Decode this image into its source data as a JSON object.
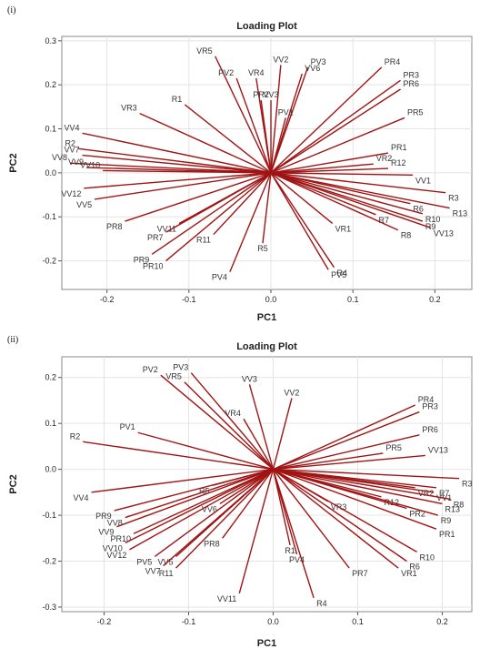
{
  "chart_data": [
    {
      "type": "scatter",
      "panel_label": "(i)",
      "title": "Loading Plot",
      "xlabel": "PC1",
      "ylabel": "PC2",
      "xlim": [
        -0.255,
        0.245
      ],
      "ylim": [
        -0.265,
        0.31
      ],
      "xticks": [
        "-0.2",
        "-0.1",
        "0.0",
        "0.1",
        "0.2"
      ],
      "yticks": [
        "0.3",
        "0.2",
        "0.1",
        "0.0",
        "-0.1",
        "-0.2"
      ],
      "xtick_values": [
        -0.2,
        -0.1,
        0.0,
        0.1,
        0.2
      ],
      "ytick_values": [
        0.3,
        0.2,
        0.1,
        0.0,
        -0.1,
        -0.2
      ],
      "grid": true,
      "line_color": "#a01414",
      "points": [
        {
          "label": "VR5",
          "x": -0.068,
          "y": 0.265
        },
        {
          "label": "PV2",
          "x": -0.042,
          "y": 0.215
        },
        {
          "label": "VR4",
          "x": -0.018,
          "y": 0.215
        },
        {
          "label": "VV2",
          "x": 0.012,
          "y": 0.245
        },
        {
          "label": "PV3",
          "x": 0.045,
          "y": 0.24
        },
        {
          "label": "VV6",
          "x": 0.038,
          "y": 0.225
        },
        {
          "label": "PR4",
          "x": 0.135,
          "y": 0.24
        },
        {
          "label": "PR3",
          "x": 0.158,
          "y": 0.21
        },
        {
          "label": "PR6",
          "x": 0.158,
          "y": 0.19
        },
        {
          "label": "PR2",
          "x": -0.012,
          "y": 0.165
        },
        {
          "label": "VV3",
          "x": 0.0,
          "y": 0.165
        },
        {
          "label": "PV1",
          "x": 0.018,
          "y": 0.125
        },
        {
          "label": "R1",
          "x": -0.105,
          "y": 0.155
        },
        {
          "label": "VR3",
          "x": -0.16,
          "y": 0.135
        },
        {
          "label": "PR5",
          "x": 0.163,
          "y": 0.125
        },
        {
          "label": "VV4",
          "x": -0.23,
          "y": 0.09
        },
        {
          "label": "R2",
          "x": -0.235,
          "y": 0.055
        },
        {
          "label": "VV7",
          "x": -0.23,
          "y": 0.04
        },
        {
          "label": "VV8",
          "x": -0.245,
          "y": 0.022
        },
        {
          "label": "VV9",
          "x": -0.225,
          "y": 0.012
        },
        {
          "label": "VV10",
          "x": -0.205,
          "y": 0.005
        },
        {
          "label": "PR1",
          "x": 0.143,
          "y": 0.045
        },
        {
          "label": "VR2",
          "x": 0.125,
          "y": 0.02
        },
        {
          "label": "R12",
          "x": 0.143,
          "y": 0.01
        },
        {
          "label": "VV1",
          "x": 0.173,
          "y": -0.005
        },
        {
          "label": "VV12",
          "x": -0.228,
          "y": -0.035
        },
        {
          "label": "VV5",
          "x": -0.215,
          "y": -0.06
        },
        {
          "label": "R3",
          "x": 0.213,
          "y": -0.045
        },
        {
          "label": "R13",
          "x": 0.218,
          "y": -0.08
        },
        {
          "label": "R6",
          "x": 0.17,
          "y": -0.07
        },
        {
          "label": "R7",
          "x": 0.128,
          "y": -0.095
        },
        {
          "label": "R10",
          "x": 0.185,
          "y": -0.093
        },
        {
          "label": "R9",
          "x": 0.185,
          "y": -0.11
        },
        {
          "label": "VV13",
          "x": 0.195,
          "y": -0.125
        },
        {
          "label": "R8",
          "x": 0.155,
          "y": -0.13
        },
        {
          "label": "VR1",
          "x": 0.075,
          "y": -0.115
        },
        {
          "label": "PR8",
          "x": -0.178,
          "y": -0.11
        },
        {
          "label": "VV11",
          "x": -0.112,
          "y": -0.115
        },
        {
          "label": "PR7",
          "x": -0.128,
          "y": -0.135
        },
        {
          "label": "R11",
          "x": -0.07,
          "y": -0.14
        },
        {
          "label": "R5",
          "x": -0.01,
          "y": -0.16
        },
        {
          "label": "PR9",
          "x": -0.145,
          "y": -0.185
        },
        {
          "label": "PR10",
          "x": -0.128,
          "y": -0.2
        },
        {
          "label": "PV4",
          "x": -0.05,
          "y": -0.225
        },
        {
          "label": "PV5",
          "x": 0.07,
          "y": -0.22
        },
        {
          "label": "R4",
          "x": 0.077,
          "y": -0.215
        }
      ]
    },
    {
      "type": "scatter",
      "panel_label": "(ii)",
      "title": "Loading Plot",
      "xlabel": "PC1",
      "ylabel": "PC2",
      "xlim": [
        -0.25,
        0.235
      ],
      "ylim": [
        -0.31,
        0.245
      ],
      "xticks": [
        "-0.2",
        "-0.1",
        "0.0",
        "0.1",
        "0.2"
      ],
      "yticks": [
        "0.2",
        "0.1",
        "0.0",
        "-0.1",
        "-0.2",
        "-0.3"
      ],
      "xtick_values": [
        -0.2,
        -0.1,
        0.0,
        0.1,
        0.2
      ],
      "ytick_values": [
        0.2,
        0.1,
        0.0,
        -0.1,
        -0.2,
        -0.3
      ],
      "grid": true,
      "line_color": "#a01414",
      "points": [
        {
          "label": "PV3",
          "x": -0.097,
          "y": 0.21
        },
        {
          "label": "PV2",
          "x": -0.133,
          "y": 0.205
        },
        {
          "label": "VR5",
          "x": -0.105,
          "y": 0.19
        },
        {
          "label": "VV3",
          "x": -0.028,
          "y": 0.185
        },
        {
          "label": "VV2",
          "x": 0.022,
          "y": 0.155
        },
        {
          "label": "VR4",
          "x": -0.035,
          "y": 0.11
        },
        {
          "label": "PR4",
          "x": 0.168,
          "y": 0.14
        },
        {
          "label": "PR3",
          "x": 0.173,
          "y": 0.125
        },
        {
          "label": "PR6",
          "x": 0.173,
          "y": 0.075
        },
        {
          "label": "PR5",
          "x": 0.13,
          "y": 0.035
        },
        {
          "label": "VV13",
          "x": 0.18,
          "y": 0.03
        },
        {
          "label": "PV1",
          "x": -0.16,
          "y": 0.08
        },
        {
          "label": "R2",
          "x": -0.225,
          "y": 0.06
        },
        {
          "label": "R3",
          "x": 0.22,
          "y": -0.02
        },
        {
          "label": "R7",
          "x": 0.193,
          "y": -0.04
        },
        {
          "label": "VR2",
          "x": 0.168,
          "y": -0.04
        },
        {
          "label": "VV1",
          "x": 0.19,
          "y": -0.05
        },
        {
          "label": "R8",
          "x": 0.21,
          "y": -0.065
        },
        {
          "label": "R13",
          "x": 0.2,
          "y": -0.075
        },
        {
          "label": "R12",
          "x": 0.128,
          "y": -0.06
        },
        {
          "label": "VR3",
          "x": 0.065,
          "y": -0.07
        },
        {
          "label": "PR2",
          "x": 0.158,
          "y": -0.085
        },
        {
          "label": "R9",
          "x": 0.195,
          "y": -0.1
        },
        {
          "label": "PR1",
          "x": 0.193,
          "y": -0.13
        },
        {
          "label": "R10",
          "x": 0.17,
          "y": -0.18
        },
        {
          "label": "R6",
          "x": 0.158,
          "y": -0.2
        },
        {
          "label": "VR1",
          "x": 0.148,
          "y": -0.215
        },
        {
          "label": "PR7",
          "x": 0.09,
          "y": -0.215
        },
        {
          "label": "VV4",
          "x": -0.215,
          "y": -0.05
        },
        {
          "label": "R5",
          "x": -0.072,
          "y": -0.035
        },
        {
          "label": "VV6",
          "x": -0.063,
          "y": -0.075
        },
        {
          "label": "PR9",
          "x": -0.188,
          "y": -0.09
        },
        {
          "label": "VV8",
          "x": -0.175,
          "y": -0.105
        },
        {
          "label": "VV9",
          "x": -0.185,
          "y": -0.125
        },
        {
          "label": "PR10",
          "x": -0.165,
          "y": -0.14
        },
        {
          "label": "VV10",
          "x": -0.175,
          "y": -0.16
        },
        {
          "label": "VV12",
          "x": -0.17,
          "y": -0.175
        },
        {
          "label": "PV5",
          "x": -0.14,
          "y": -0.19
        },
        {
          "label": "VV5",
          "x": -0.115,
          "y": -0.19
        },
        {
          "label": "VV7",
          "x": -0.13,
          "y": -0.21
        },
        {
          "label": "R11",
          "x": -0.115,
          "y": -0.215
        },
        {
          "label": "PR8",
          "x": -0.06,
          "y": -0.15
        },
        {
          "label": "R1",
          "x": 0.02,
          "y": -0.165
        },
        {
          "label": "PV4",
          "x": 0.028,
          "y": -0.185
        },
        {
          "label": "VV11",
          "x": -0.04,
          "y": -0.27
        },
        {
          "label": "R4",
          "x": 0.048,
          "y": -0.28
        }
      ]
    }
  ]
}
